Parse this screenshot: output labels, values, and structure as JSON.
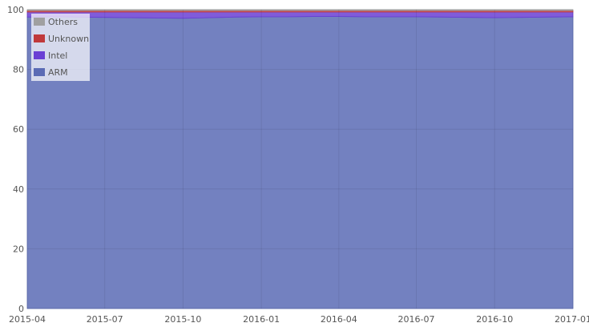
{
  "chart_data": {
    "type": "area",
    "stacked": true,
    "title": "",
    "xlabel": "",
    "ylabel": "",
    "ylim": [
      0,
      100
    ],
    "xlim": [
      "2015-04-01",
      "2017-01-01"
    ],
    "grid": true,
    "legend_position": "top-left",
    "x_tick_labels": [
      "2015-04",
      "2015-07",
      "2015-10",
      "2016-01",
      "2016-04",
      "2016-07",
      "2016-10",
      "2017-01"
    ],
    "y_tick_labels": [
      "0",
      "20",
      "40",
      "60",
      "80",
      "100"
    ],
    "x": [
      "2015-04-01",
      "2015-05-01",
      "2015-06-01",
      "2015-07-01",
      "2015-08-01",
      "2015-09-01",
      "2015-10-01",
      "2015-11-01",
      "2015-12-01",
      "2016-01-01",
      "2016-02-01",
      "2016-03-01",
      "2016-04-01",
      "2016-05-01",
      "2016-06-01",
      "2016-07-01",
      "2016-08-01",
      "2016-09-01",
      "2016-10-01",
      "2016-11-01",
      "2016-12-01",
      "2017-01-01"
    ],
    "series": [
      {
        "name": "ARM",
        "color": "#5b6bb5",
        "values": [
          97.5,
          97.6,
          97.5,
          97.4,
          97.3,
          97.2,
          97.1,
          97.3,
          97.5,
          97.6,
          97.6,
          97.7,
          97.7,
          97.6,
          97.6,
          97.6,
          97.5,
          97.4,
          97.3,
          97.4,
          97.5,
          97.6
        ]
      },
      {
        "name": "Intel",
        "color": "#6a3fd4",
        "values": [
          1.7,
          1.6,
          1.7,
          1.8,
          1.9,
          2.0,
          2.1,
          1.9,
          1.7,
          1.6,
          1.6,
          1.5,
          1.5,
          1.6,
          1.6,
          1.6,
          1.7,
          1.8,
          1.9,
          1.8,
          1.7,
          1.6
        ]
      },
      {
        "name": "Unknown",
        "color": "#c0393b",
        "values": [
          0.5,
          0.5,
          0.5,
          0.5,
          0.5,
          0.5,
          0.5,
          0.5,
          0.5,
          0.5,
          0.5,
          0.5,
          0.5,
          0.5,
          0.5,
          0.5,
          0.5,
          0.5,
          0.5,
          0.5,
          0.5,
          0.5
        ]
      },
      {
        "name": "Others",
        "color": "#a0a0a0",
        "values": [
          0.3,
          0.3,
          0.3,
          0.3,
          0.3,
          0.3,
          0.3,
          0.3,
          0.3,
          0.3,
          0.3,
          0.3,
          0.3,
          0.3,
          0.3,
          0.3,
          0.3,
          0.3,
          0.3,
          0.3,
          0.3,
          0.3
        ]
      }
    ],
    "legend_order": [
      "Others",
      "Unknown",
      "Intel",
      "ARM"
    ]
  }
}
